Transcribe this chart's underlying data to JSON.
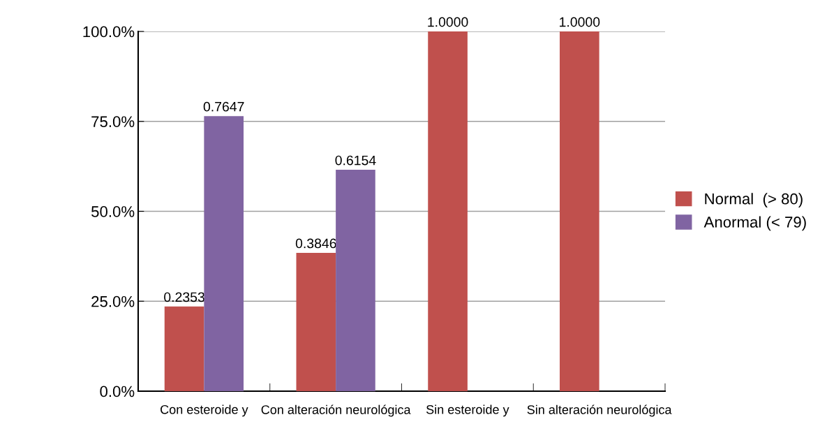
{
  "chart_data": {
    "type": "bar",
    "categories": [
      "Con esteroide y",
      "Con alteración neurológica",
      "Sin esteroide y",
      "Sin alteración neurológica"
    ],
    "series": [
      {
        "name": "Normal  (> 80)",
        "color": "#c0504d",
        "values": [
          0.2353,
          0.3846,
          1.0,
          1.0
        ],
        "value_labels": [
          "0.2353",
          "0.3846",
          "1.0000",
          "1.0000"
        ]
      },
      {
        "name": "Anormal (< 79)",
        "color": "#8064a2",
        "values": [
          0.7647,
          0.6154,
          null,
          null
        ],
        "value_labels": [
          "0.7647",
          "0.6154",
          null,
          null
        ]
      }
    ],
    "ylim": [
      0,
      1
    ],
    "yticks": [
      {
        "value": 0,
        "label": "0.0%"
      },
      {
        "value": 0.25,
        "label": "25.0%"
      },
      {
        "value": 0.5,
        "label": "50.0%"
      },
      {
        "value": 0.75,
        "label": "75.0%"
      },
      {
        "value": 1,
        "label": "100.0%"
      }
    ],
    "grid": "y",
    "legend": "right"
  }
}
